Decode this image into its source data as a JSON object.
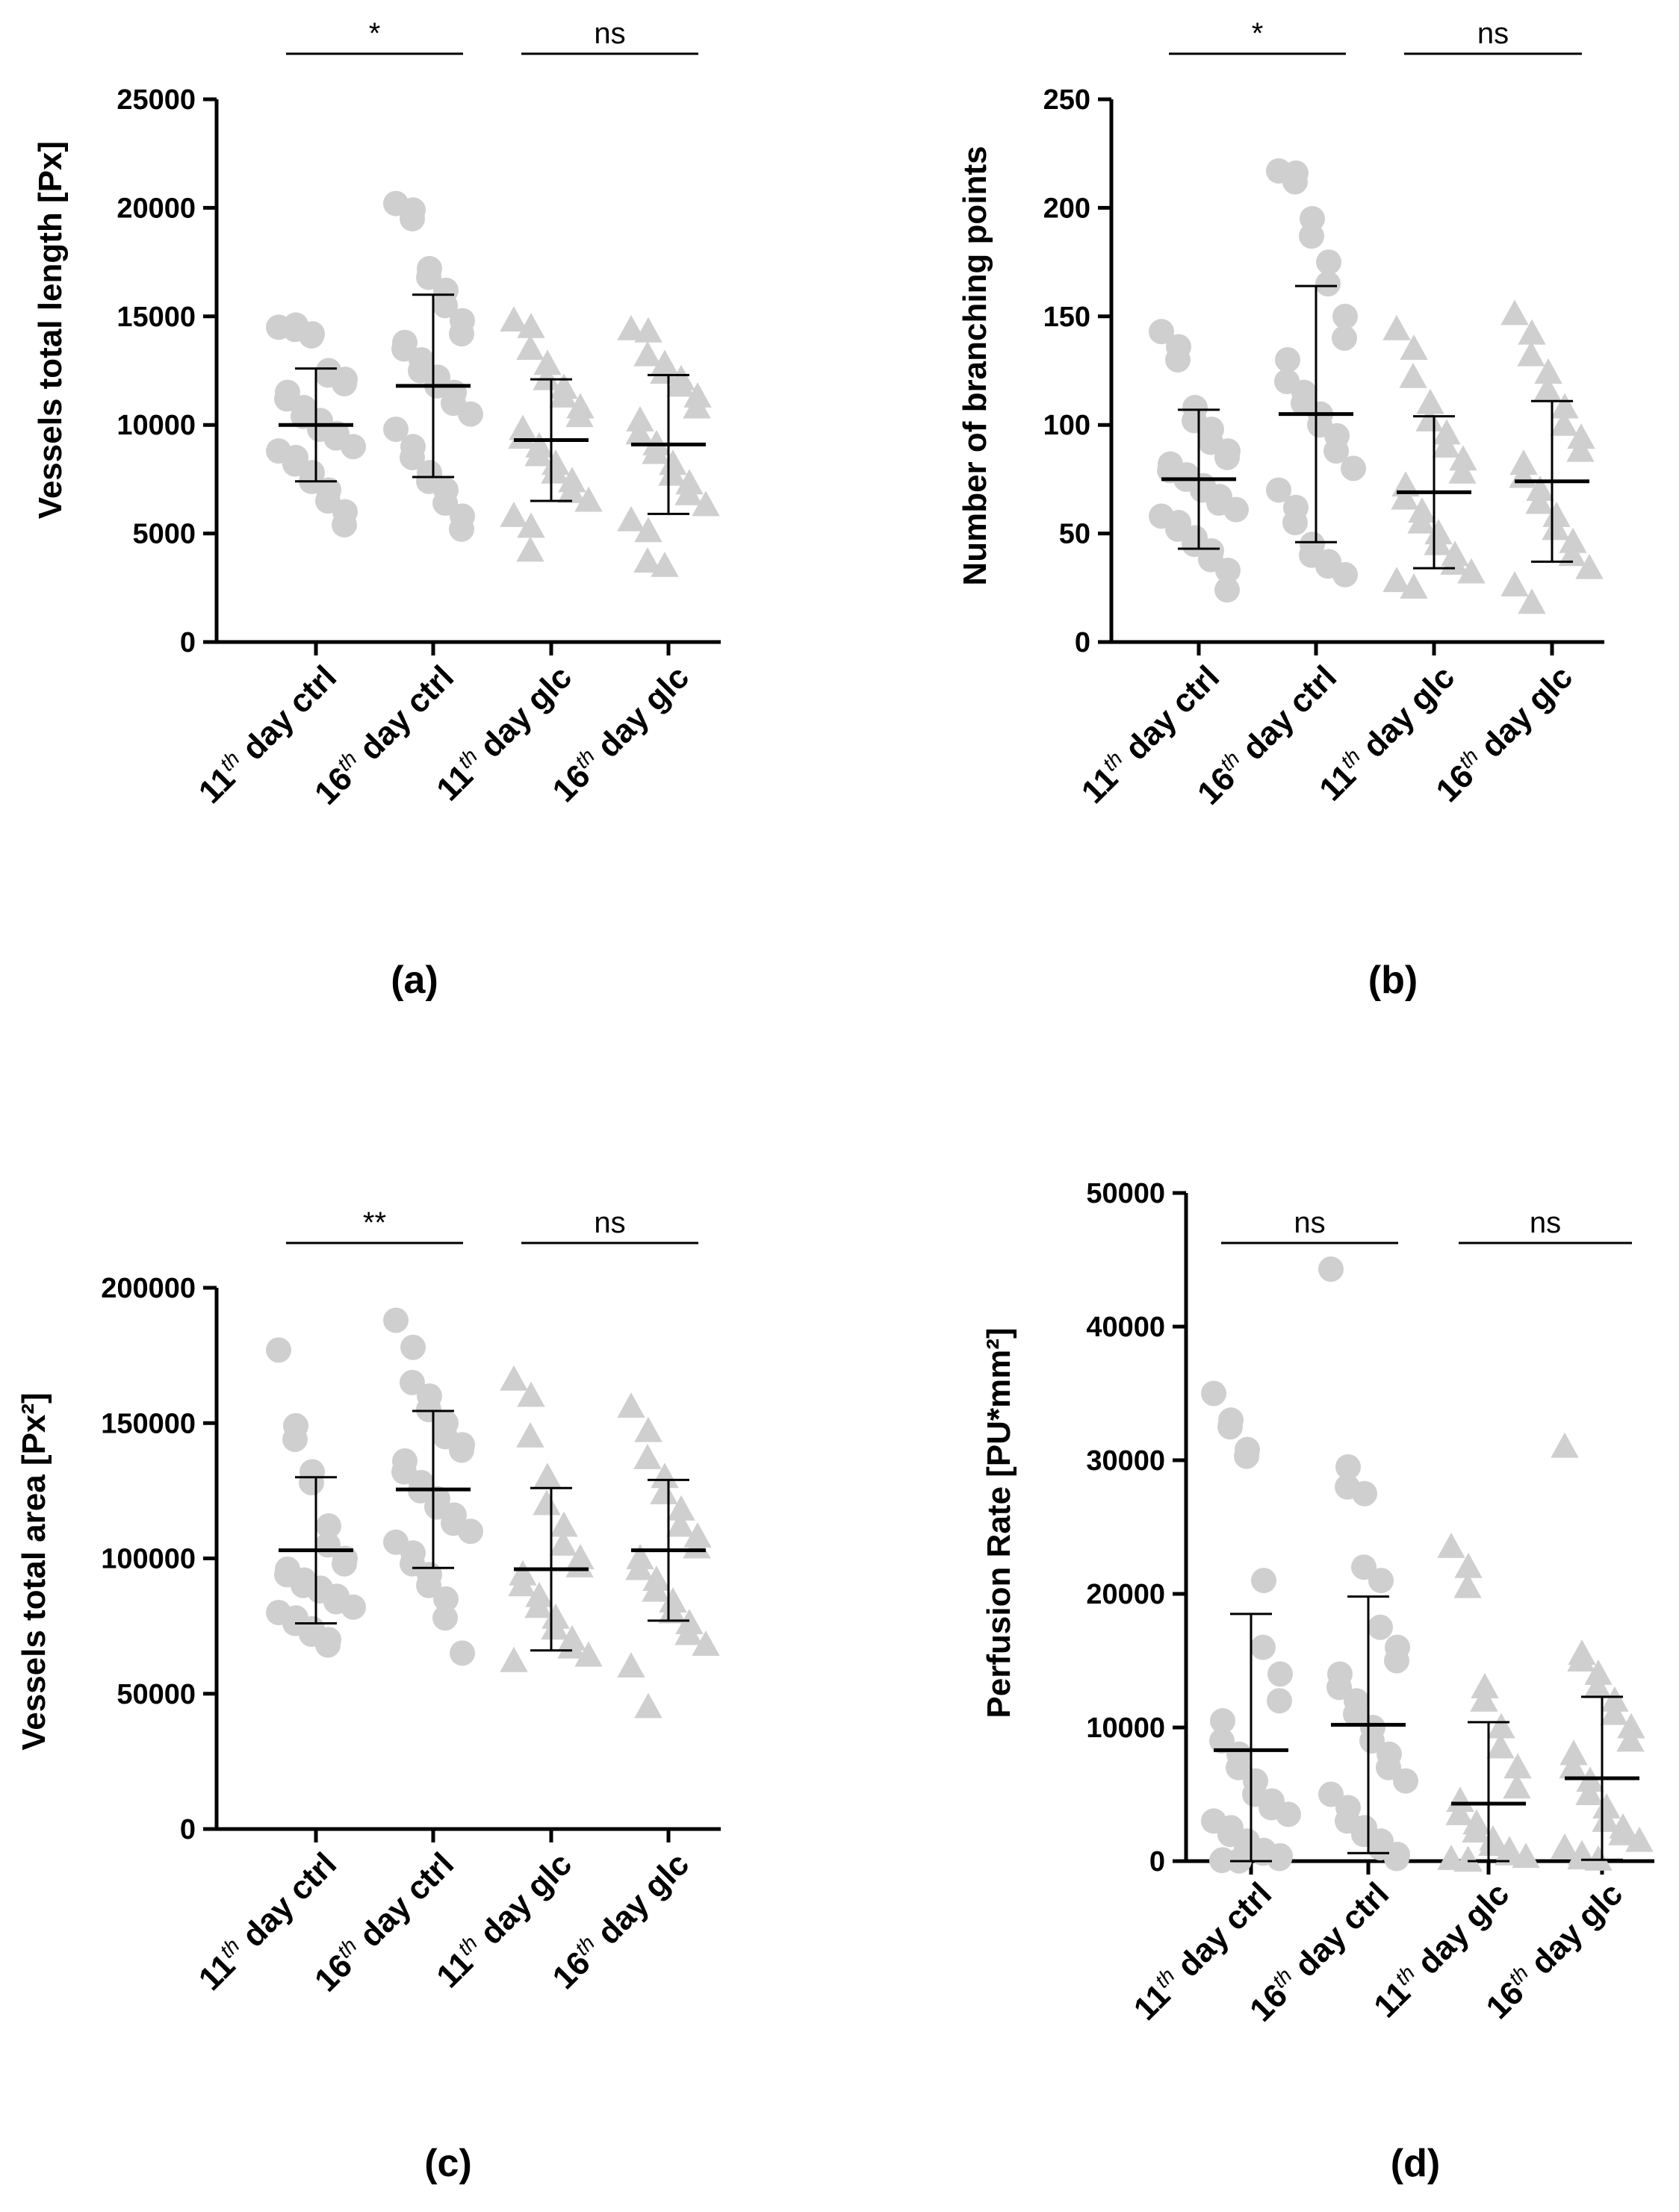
{
  "chart_data": [
    {
      "type": "scatter",
      "panel": "(a)",
      "ylabel": "Vessels total length [Px]",
      "ylim": [
        0,
        25000
      ],
      "yticks": [
        0,
        5000,
        10000,
        15000,
        20000,
        25000
      ],
      "categories": [
        {
          "pre": "11",
          "sup": "th",
          "post": " day ctrl"
        },
        {
          "pre": "16",
          "sup": "th",
          "post": " day ctrl"
        },
        {
          "pre": "11",
          "sup": "th",
          "post": " day glc"
        },
        {
          "pre": "16",
          "sup": "th",
          "post": " day glc"
        }
      ],
      "series": [
        {
          "name": "11th day ctrl",
          "marker": "circle",
          "mean": 10000,
          "sd": 2600,
          "values": [
            14500,
            14600,
            14400,
            14200,
            14100,
            12500,
            12300,
            12100,
            11900,
            11500,
            11200,
            10800,
            10400,
            10200,
            9800,
            9600,
            9400,
            9000,
            8800,
            8500,
            8200,
            7800,
            7400,
            7000,
            6500,
            6000,
            5400
          ]
        },
        {
          "name": "16th day ctrl",
          "marker": "circle",
          "mean": 11800,
          "sd": 4200,
          "values": [
            20200,
            19900,
            19500,
            17200,
            16800,
            16200,
            15500,
            14800,
            14200,
            13800,
            13500,
            13000,
            12500,
            12200,
            11800,
            11500,
            11000,
            10500,
            9800,
            9000,
            8500,
            7800,
            7400,
            7000,
            6400,
            5800,
            5200
          ]
        },
        {
          "name": "11th day glc",
          "marker": "triangle",
          "mean": 9300,
          "sd": 2800,
          "values": [
            14800,
            14500,
            13500,
            12800,
            12100,
            11700,
            11300,
            10800,
            10400,
            9800,
            9400,
            9000,
            8600,
            8200,
            7800,
            7400,
            6900,
            6500,
            5800,
            5300,
            4200
          ]
        },
        {
          "name": "16th day glc",
          "marker": "triangle",
          "mean": 9100,
          "sd": 3200,
          "values": [
            14400,
            14300,
            13200,
            12800,
            12400,
            12100,
            11800,
            11300,
            10800,
            10200,
            9600,
            9100,
            8700,
            8200,
            7700,
            7300,
            6800,
            6300,
            5600,
            5100,
            3700,
            3500
          ]
        }
      ],
      "comparisons": [
        {
          "from": 0,
          "to": 1,
          "label": "*"
        },
        {
          "from": 2,
          "to": 3,
          "label": "ns"
        }
      ]
    },
    {
      "type": "scatter",
      "panel": "(b)",
      "ylabel": "Number of branching points",
      "ylim": [
        0,
        250
      ],
      "yticks": [
        0,
        50,
        100,
        150,
        200,
        250
      ],
      "categories": [
        {
          "pre": "11",
          "sup": "th",
          "post": " day ctrl"
        },
        {
          "pre": "16",
          "sup": "th",
          "post": " day ctrl"
        },
        {
          "pre": "11",
          "sup": "th",
          "post": " day glc"
        },
        {
          "pre": "16",
          "sup": "th",
          "post": " day glc"
        }
      ],
      "series": [
        {
          "name": "11th day ctrl",
          "marker": "circle",
          "mean": 75,
          "sd": 32,
          "values": [
            143,
            136,
            130,
            108,
            102,
            98,
            92,
            88,
            85,
            82,
            79,
            77,
            75,
            72,
            70,
            67,
            64,
            61,
            58,
            55,
            52,
            48,
            45,
            42,
            38,
            33,
            24
          ]
        },
        {
          "name": "16th day ctrl",
          "marker": "circle",
          "mean": 105,
          "sd": 59,
          "values": [
            217,
            216,
            212,
            195,
            187,
            175,
            165,
            150,
            140,
            130,
            120,
            115,
            110,
            105,
            100,
            95,
            88,
            80,
            70,
            62,
            55,
            45,
            40,
            37,
            35,
            31
          ]
        },
        {
          "name": "11th day glc",
          "marker": "triangle",
          "mean": 69,
          "sd": 35,
          "values": [
            144,
            135,
            122,
            110,
            102,
            96,
            90,
            84,
            78,
            72,
            66,
            60,
            55,
            50,
            45,
            40,
            36,
            32,
            28,
            25
          ]
        },
        {
          "name": "16th day glc",
          "marker": "triangle",
          "mean": 74,
          "sd": 37,
          "values": [
            151,
            142,
            132,
            124,
            116,
            108,
            100,
            94,
            88,
            82,
            76,
            70,
            64,
            58,
            52,
            46,
            40,
            34,
            26,
            18
          ]
        }
      ],
      "comparisons": [
        {
          "from": 0,
          "to": 1,
          "label": "*"
        },
        {
          "from": 2,
          "to": 3,
          "label": "ns"
        }
      ]
    },
    {
      "type": "scatter",
      "panel": "(c)",
      "ylabel": "Vessels total area [Px²]",
      "ylim": [
        0,
        200000
      ],
      "yticks": [
        0,
        50000,
        100000,
        150000,
        200000
      ],
      "categories": [
        {
          "pre": "11",
          "sup": "th",
          "post": " day ctrl"
        },
        {
          "pre": "16",
          "sup": "th",
          "post": " day ctrl"
        },
        {
          "pre": "11",
          "sup": "th",
          "post": " day glc"
        },
        {
          "pre": "16",
          "sup": "th",
          "post": " day glc"
        }
      ],
      "series": [
        {
          "name": "11th day ctrl",
          "marker": "circle",
          "mean": 103000,
          "sd": 27000,
          "values": [
            177000,
            149000,
            144000,
            132000,
            128000,
            112000,
            105000,
            100000,
            98000,
            96000,
            94000,
            92000,
            90000,
            89000,
            88000,
            86000,
            84000,
            82000,
            80000,
            78000,
            76000,
            74000,
            72000,
            70000,
            68000
          ]
        },
        {
          "name": "16th day ctrl",
          "marker": "circle",
          "mean": 125500,
          "sd": 29000,
          "values": [
            188000,
            178000,
            165000,
            160000,
            155000,
            150000,
            145000,
            142000,
            140000,
            136000,
            132000,
            128000,
            125000,
            122000,
            119000,
            116000,
            113000,
            110000,
            106000,
            102000,
            98000,
            94000,
            90000,
            85000,
            78000,
            65000
          ]
        },
        {
          "name": "11th day glc",
          "marker": "triangle",
          "mean": 96000,
          "sd": 30000,
          "values": [
            166000,
            160000,
            145000,
            130000,
            120000,
            112000,
            105000,
            100000,
            97000,
            94000,
            90000,
            86000,
            82000,
            78000,
            74000,
            70000,
            67000,
            64000,
            62000
          ]
        },
        {
          "name": "16th day glc",
          "marker": "triangle",
          "mean": 103000,
          "sd": 26000,
          "values": [
            156000,
            147000,
            137000,
            130000,
            124000,
            118000,
            112000,
            108000,
            104000,
            100000,
            96000,
            92000,
            88000,
            84000,
            80000,
            76000,
            72000,
            68000,
            60000,
            45000
          ]
        }
      ],
      "comparisons": [
        {
          "from": 0,
          "to": 1,
          "label": "**"
        },
        {
          "from": 2,
          "to": 3,
          "label": "ns"
        }
      ]
    },
    {
      "type": "scatter",
      "panel": "(d)",
      "ylabel": "Perfusion Rate [PU*mm²]",
      "ylim": [
        0,
        50000
      ],
      "yticks": [
        0,
        10000,
        20000,
        30000,
        40000,
        50000
      ],
      "categories": [
        {
          "pre": "11",
          "sup": "th",
          "post": " day ctrl"
        },
        {
          "pre": "16",
          "sup": "th",
          "post": " day ctrl"
        },
        {
          "pre": "11",
          "sup": "th",
          "post": " day glc"
        },
        {
          "pre": "16",
          "sup": "th",
          "post": " day glc"
        }
      ],
      "series": [
        {
          "name": "11th day ctrl",
          "marker": "circle",
          "mean": 8300,
          "sd": 10200,
          "values": [
            35000,
            33000,
            32500,
            30800,
            30300,
            21000,
            16000,
            14000,
            12000,
            10500,
            9000,
            8000,
            7000,
            6000,
            5000,
            4500,
            4000,
            3500,
            3000,
            2500,
            2000,
            1500,
            1000,
            800,
            600,
            400,
            200,
            100,
            50,
            20
          ]
        },
        {
          "name": "16th day ctrl",
          "marker": "circle",
          "mean": 10200,
          "sd": 9600,
          "values": [
            44300,
            29500,
            28000,
            27500,
            22000,
            21000,
            17500,
            16000,
            15000,
            14000,
            13000,
            12000,
            11000,
            10000,
            9000,
            8000,
            7000,
            6000,
            5000,
            4000,
            3000,
            2500,
            2000,
            1500,
            1000,
            500,
            200
          ]
        },
        {
          "name": "11th day glc",
          "marker": "triangle",
          "mean": 4300,
          "sd": 6100,
          "values": [
            23500,
            22000,
            20500,
            13000,
            12000,
            10000,
            8500,
            7000,
            5500,
            4500,
            3500,
            2800,
            2200,
            1600,
            1200,
            800,
            500,
            300,
            150,
            50,
            20
          ]
        },
        {
          "name": "16th day glc",
          "marker": "triangle",
          "mean": 6200,
          "sd": 6100,
          "values": [
            31000,
            15500,
            15000,
            14000,
            13000,
            12000,
            11000,
            10000,
            9000,
            8000,
            7000,
            6000,
            5000,
            4000,
            3000,
            2500,
            2000,
            1500,
            1000,
            500,
            200,
            100
          ]
        }
      ],
      "comparisons": [
        {
          "from": 0,
          "to": 1,
          "label": "ns"
        },
        {
          "from": 2,
          "to": 3,
          "label": "ns"
        }
      ]
    }
  ]
}
